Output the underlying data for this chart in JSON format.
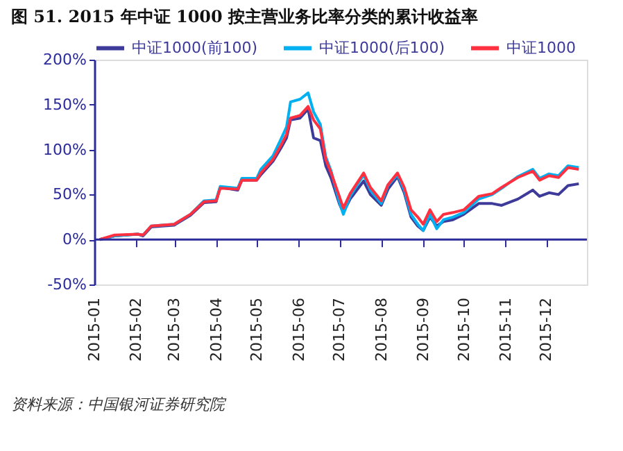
{
  "chart_data": {
    "type": "line",
    "title": "图 51. 2015 年中证 1000 按主营业务比率分类的累计收益率",
    "x": [
      "2015-01-05",
      "2015-01-16",
      "2015-02-02",
      "2015-02-06",
      "2015-02-12",
      "2015-03-01",
      "2015-03-13",
      "2015-03-23",
      "2015-04-01",
      "2015-04-04",
      "2015-04-17",
      "2015-04-20",
      "2015-05-01",
      "2015-05-04",
      "2015-05-13",
      "2015-05-19",
      "2015-05-23",
      "2015-05-26",
      "2015-06-02",
      "2015-06-08",
      "2015-06-12",
      "2015-06-17",
      "2015-06-21",
      "2015-06-25",
      "2015-07-01",
      "2015-07-04",
      "2015-07-09",
      "2015-07-19",
      "2015-07-24",
      "2015-08-01",
      "2015-08-06",
      "2015-08-13",
      "2015-08-18",
      "2015-08-23",
      "2015-08-28",
      "2015-09-01",
      "2015-09-06",
      "2015-09-11",
      "2015-09-16",
      "2015-09-23",
      "2015-10-01",
      "2015-10-12",
      "2015-10-22",
      "2015-10-29",
      "2015-11-10",
      "2015-11-21",
      "2015-11-26",
      "2015-12-03",
      "2015-12-10",
      "2015-12-17",
      "2015-12-25"
    ],
    "series": [
      {
        "name": "中证1000(前100)",
        "color": "#3d3a9a",
        "values": [
          0,
          4,
          6,
          4,
          14,
          16,
          27,
          41,
          42,
          58,
          55,
          66,
          66,
          72,
          87,
          102,
          113,
          133,
          135,
          145,
          113,
          110,
          82,
          68,
          40,
          30,
          45,
          65,
          50,
          38,
          56,
          70,
          52,
          25,
          15,
          10,
          25,
          15,
          20,
          22,
          28,
          40,
          40,
          38,
          45,
          55,
          48,
          52,
          50,
          60,
          62
        ]
      },
      {
        "name": "中证1000(后100)",
        "color": "#00b0f0",
        "values": [
          0,
          4,
          6,
          5,
          15,
          17,
          28,
          43,
          44,
          59,
          57,
          68,
          68,
          78,
          93,
          112,
          125,
          153,
          156,
          163,
          142,
          128,
          92,
          76,
          42,
          28,
          48,
          72,
          55,
          40,
          60,
          72,
          55,
          28,
          17,
          10,
          28,
          12,
          22,
          25,
          30,
          45,
          50,
          57,
          70,
          78,
          68,
          73,
          71,
          82,
          80
        ]
      },
      {
        "name": "中证1000",
        "color": "#ff3040",
        "values": [
          0,
          5,
          6,
          5,
          15,
          17,
          28,
          42,
          43,
          57,
          56,
          66,
          66,
          74,
          89,
          105,
          117,
          135,
          138,
          148,
          133,
          123,
          89,
          74,
          48,
          35,
          51,
          74,
          58,
          43,
          61,
          74,
          58,
          33,
          25,
          17,
          33,
          20,
          28,
          30,
          33,
          48,
          51,
          58,
          69,
          76,
          66,
          71,
          69,
          80,
          78
        ]
      }
    ],
    "ylim": [
      -50,
      200
    ],
    "yticks": [
      {
        "value": -50,
        "label": "-50%"
      },
      {
        "value": 0,
        "label": "0%"
      },
      {
        "value": 50,
        "label": "50%"
      },
      {
        "value": 100,
        "label": "100%"
      },
      {
        "value": 150,
        "label": "150%"
      },
      {
        "value": 200,
        "label": "200%"
      }
    ],
    "xlim": [
      "2015-01-01",
      "2015-12-31"
    ],
    "xticks": [
      {
        "value": "2015-01-01",
        "label": "2015-01"
      },
      {
        "value": "2015-02-01",
        "label": "2015-02"
      },
      {
        "value": "2015-03-01",
        "label": "2015-03"
      },
      {
        "value": "2015-04-01",
        "label": "2015-04"
      },
      {
        "value": "2015-05-01",
        "label": "2015-05"
      },
      {
        "value": "2015-06-01",
        "label": "2015-06"
      },
      {
        "value": "2015-07-01",
        "label": "2015-07"
      },
      {
        "value": "2015-08-01",
        "label": "2015-08"
      },
      {
        "value": "2015-09-01",
        "label": "2015-09"
      },
      {
        "value": "2015-10-01",
        "label": "2015-10"
      },
      {
        "value": "2015-11-01",
        "label": "2015-11"
      },
      {
        "value": "2015-12-01",
        "label": "2015-12"
      }
    ],
    "ref_lines": [
      {
        "axis": "y",
        "value": 0,
        "color": "#2b2b9b"
      }
    ],
    "legend": "top",
    "grid": false,
    "marker": "none",
    "line_style": "solid",
    "annotations": [
      "资料来源：中国银河证券研究院"
    ]
  }
}
